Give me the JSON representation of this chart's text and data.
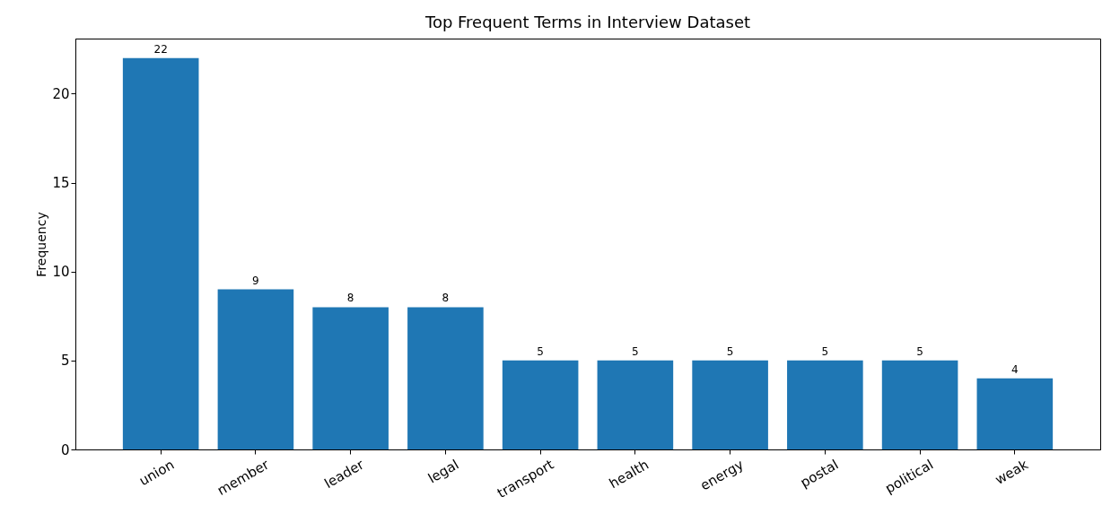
{
  "chart_data": {
    "type": "bar",
    "title": "Top Frequent Terms in Interview Dataset",
    "ylabel": "Frequency",
    "categories": [
      "union",
      "member",
      "leader",
      "legal",
      "transport",
      "health",
      "energy",
      "postal",
      "political",
      "weak"
    ],
    "values": [
      22,
      9,
      8,
      8,
      5,
      5,
      5,
      5,
      5,
      4
    ],
    "color": "#1f77b4",
    "ylim": [
      0,
      23.1
    ],
    "yticks": [
      0,
      5,
      10,
      15,
      20
    ],
    "grid": false,
    "data_labels": true
  }
}
